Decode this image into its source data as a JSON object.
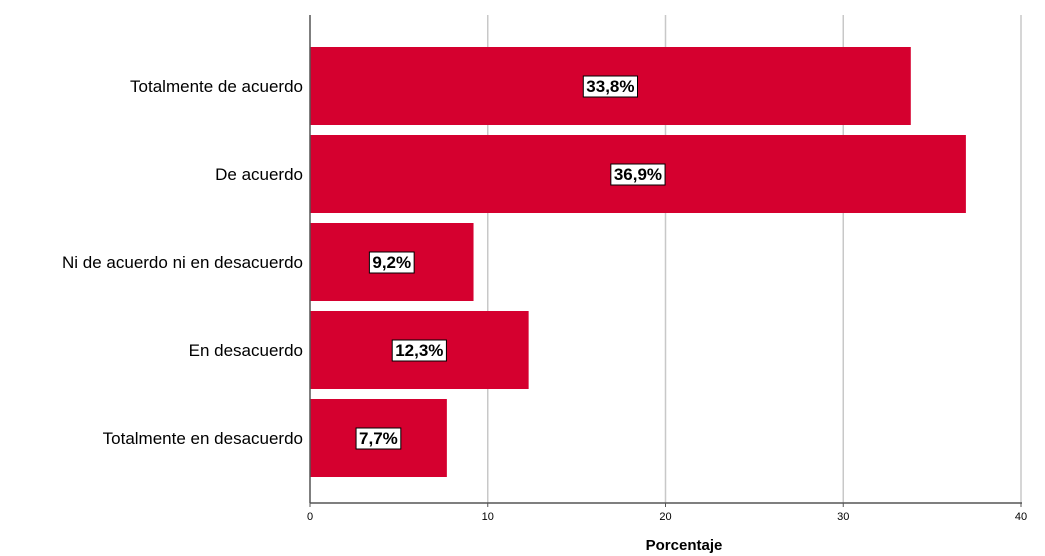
{
  "chart_data": {
    "type": "bar",
    "orientation": "horizontal",
    "categories": [
      "Totalmente de acuerdo",
      "De acuerdo",
      "Ni de acuerdo ni en desacuerdo",
      "En desacuerdo",
      "Totalmente en desacuerdo"
    ],
    "values": [
      33.8,
      36.9,
      9.2,
      12.3,
      7.7
    ],
    "data_labels": [
      "33,8%",
      "36,9%",
      "9,2%",
      "12,3%",
      "7,7%"
    ],
    "xlabel": "Porcentaje",
    "xlim": [
      0,
      40
    ],
    "xticks": [
      0,
      10,
      20,
      30,
      40
    ],
    "grid": "vertical",
    "bar_color": "#d5002f"
  }
}
